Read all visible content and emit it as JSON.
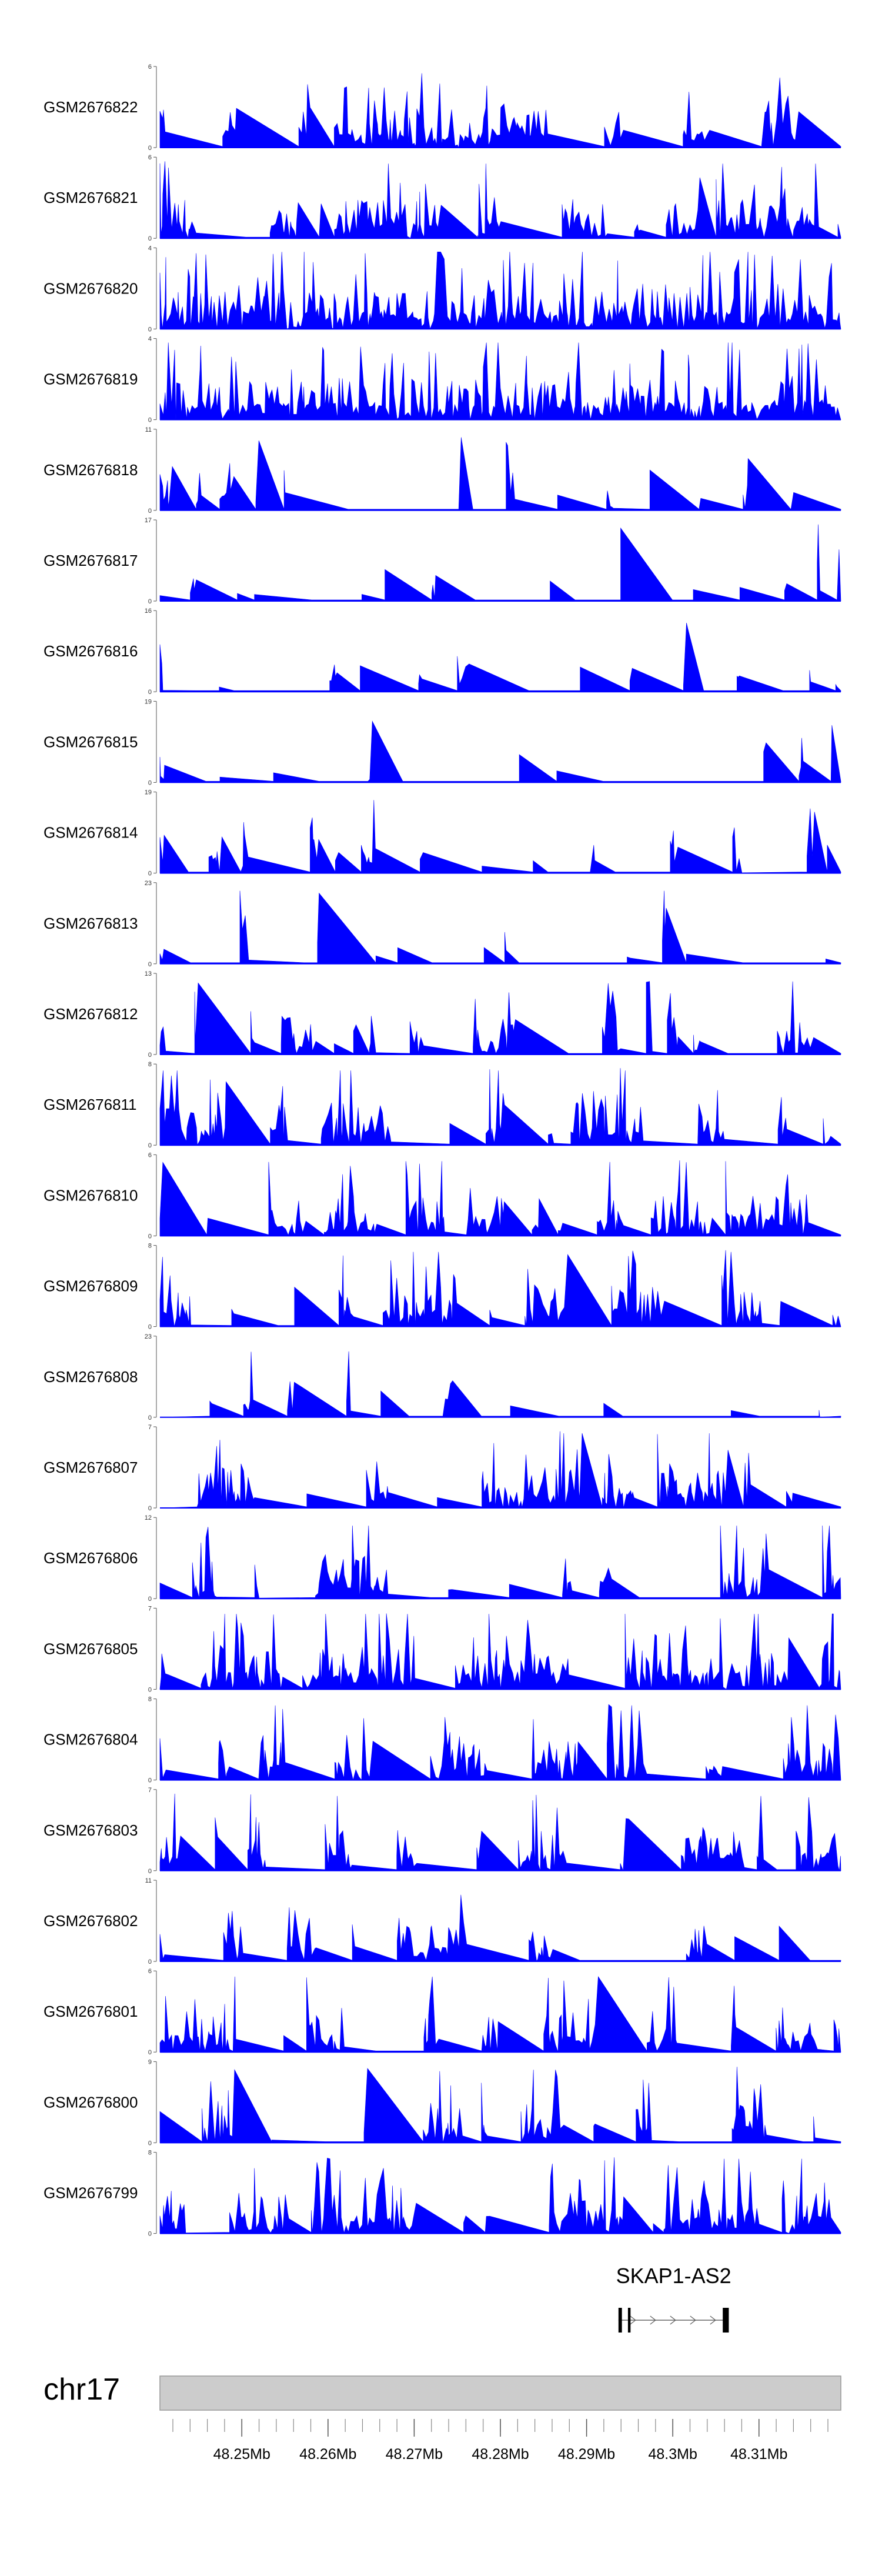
{
  "chart_data": {
    "type": "area",
    "title": "",
    "fill_color": "#0000ff",
    "xlim_mb": [
      48.2405,
      48.3195
    ],
    "tracks": [
      {
        "label": "GSM2676822",
        "ymax": "6",
        "ymin": "0",
        "seed": 22,
        "gap": 0.03,
        "peak": 0.92
      },
      {
        "label": "GSM2676821",
        "ymax": "6",
        "ymin": "0",
        "seed": 21,
        "gap": 0.03,
        "peak": 0.92
      },
      {
        "label": "GSM2676820",
        "ymax": "4",
        "ymin": "0",
        "seed": 20,
        "gap": 0.0,
        "peak": 0.95
      },
      {
        "label": "GSM2676819",
        "ymax": "4",
        "ymin": "0",
        "seed": 19,
        "gap": 0.01,
        "peak": 0.95
      },
      {
        "label": "GSM2676818",
        "ymax": "11",
        "ymin": "0",
        "seed": 18,
        "gap": 0.25,
        "peak": 0.9
      },
      {
        "label": "GSM2676817",
        "ymax": "17",
        "ymin": "0",
        "seed": 17,
        "gap": 0.35,
        "peak": 0.9
      },
      {
        "label": "GSM2676816",
        "ymax": "16",
        "ymin": "0",
        "seed": 16,
        "gap": 0.35,
        "peak": 0.9
      },
      {
        "label": "GSM2676815",
        "ymax": "19",
        "ymin": "0",
        "seed": 15,
        "gap": 0.45,
        "peak": 0.9
      },
      {
        "label": "GSM2676814",
        "ymax": "19",
        "ymin": "0",
        "seed": 14,
        "gap": 0.3,
        "peak": 0.9
      },
      {
        "label": "GSM2676813",
        "ymax": "23",
        "ymin": "0",
        "seed": 13,
        "gap": 0.35,
        "peak": 0.9
      },
      {
        "label": "GSM2676812",
        "ymax": "13",
        "ymin": "0",
        "seed": 12,
        "gap": 0.15,
        "peak": 0.9
      },
      {
        "label": "GSM2676811",
        "ymax": "8",
        "ymin": "0",
        "seed": 11,
        "gap": 0.08,
        "peak": 0.92
      },
      {
        "label": "GSM2676810",
        "ymax": "6",
        "ymin": "0",
        "seed": 10,
        "gap": 0.05,
        "peak": 0.92
      },
      {
        "label": "GSM2676809",
        "ymax": "8",
        "ymin": "0",
        "seed": 9,
        "gap": 0.08,
        "peak": 0.92
      },
      {
        "label": "GSM2676808",
        "ymax": "23",
        "ymin": "0",
        "seed": 8,
        "gap": 0.3,
        "peak": 0.9
      },
      {
        "label": "GSM2676807",
        "ymax": "7",
        "ymin": "0",
        "seed": 7,
        "gap": 0.04,
        "peak": 0.92
      },
      {
        "label": "GSM2676806",
        "ymax": "12",
        "ymin": "0",
        "seed": 6,
        "gap": 0.12,
        "peak": 0.9
      },
      {
        "label": "GSM2676805",
        "ymax": "7",
        "ymin": "0",
        "seed": 5,
        "gap": 0.02,
        "peak": 0.93
      },
      {
        "label": "GSM2676804",
        "ymax": "8",
        "ymin": "0",
        "seed": 4,
        "gap": 0.06,
        "peak": 0.92
      },
      {
        "label": "GSM2676803",
        "ymax": "7",
        "ymin": "0",
        "seed": 3,
        "gap": 0.06,
        "peak": 0.92
      },
      {
        "label": "GSM2676802",
        "ymax": "11",
        "ymin": "0",
        "seed": 2,
        "gap": 0.1,
        "peak": 0.9
      },
      {
        "label": "GSM2676801",
        "ymax": "6",
        "ymin": "0",
        "seed": 1,
        "gap": 0.04,
        "peak": 0.93
      },
      {
        "label": "GSM2676800",
        "ymax": "9",
        "ymin": "0",
        "seed": 99,
        "gap": 0.1,
        "peak": 0.9
      },
      {
        "label": "GSM2676799",
        "ymax": "8",
        "ymin": "0",
        "seed": 98,
        "gap": 0.06,
        "peak": 0.92
      }
    ],
    "gene": {
      "name": "SKAP1-AS2",
      "start_mb": 48.2937,
      "end_mb": 48.3065,
      "strand": "+",
      "exons_mb": [
        [
          48.2937,
          48.2941
        ],
        [
          48.2948,
          48.2951
        ],
        [
          48.3058,
          48.3065
        ]
      ]
    },
    "chromosome": {
      "name": "chr17",
      "ticks_mb": [
        48.25,
        48.26,
        48.27,
        48.28,
        48.29,
        48.3,
        48.31
      ],
      "tick_labels": [
        "48.25Mb",
        "48.26Mb",
        "48.27Mb",
        "48.28Mb",
        "48.29Mb",
        "48.3Mb",
        "48.31Mb"
      ],
      "minor_tick_step_mb": 0.002,
      "band_color": "#cccccc",
      "band_border": "#999999"
    }
  }
}
